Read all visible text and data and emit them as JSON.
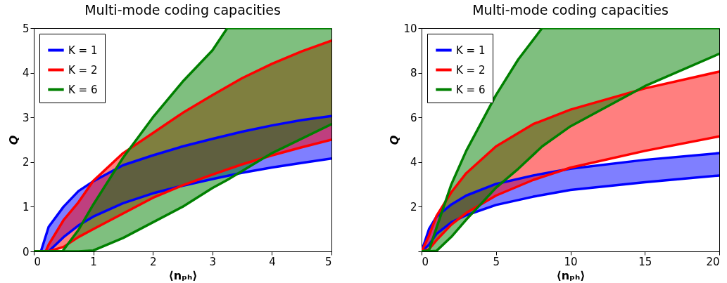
{
  "chart_data": [
    {
      "type": "line",
      "title": "Multi-mode coding capacities",
      "xlabel": "⟨nₚₕ⟩",
      "ylabel": "Q",
      "xlim": [
        0,
        5
      ],
      "ylim": [
        0,
        5
      ],
      "xticks": [
        0,
        1,
        2,
        3,
        4,
        5
      ],
      "yticks": [
        0,
        1,
        2,
        3,
        4,
        5
      ],
      "legend": "top left",
      "series": [
        {
          "name": "K = 1",
          "color": "#0000ff",
          "x": [
            0,
            0.12,
            0.25,
            0.5,
            0.75,
            1,
            1.5,
            2,
            2.5,
            3,
            3.5,
            4,
            4.5,
            5
          ],
          "values": [
            0,
            0,
            0.55,
            1.0,
            1.35,
            1.57,
            1.93,
            2.15,
            2.35,
            2.52,
            2.68,
            2.82,
            2.94,
            3.03
          ],
          "upper": [
            0,
            0,
            0.55,
            1.0,
            1.35,
            1.57,
            1.93,
            2.15,
            2.35,
            2.52,
            2.68,
            2.82,
            2.94,
            3.03
          ],
          "lower": [
            0,
            0,
            0,
            0.32,
            0.58,
            0.78,
            1.08,
            1.3,
            1.47,
            1.62,
            1.76,
            1.88,
            1.98,
            2.08
          ]
        },
        {
          "color": "#0000ff",
          "x": [
            0,
            0.12,
            0.25,
            0.5,
            0.75,
            1,
            1.5,
            2,
            2.5,
            3,
            3.5,
            4,
            4.5,
            5
          ],
          "values": [
            0,
            0,
            0,
            0.32,
            0.58,
            0.78,
            1.08,
            1.3,
            1.47,
            1.62,
            1.76,
            1.88,
            1.98,
            2.08
          ]
        },
        {
          "name": "K = 2",
          "color": "#ff0000",
          "x": [
            0,
            0.2,
            0.25,
            0.5,
            0.75,
            1,
            1.5,
            2,
            2.5,
            3,
            3.5,
            4,
            4.5,
            5
          ],
          "values": [
            0,
            0,
            0.15,
            0.7,
            1.1,
            1.58,
            2.2,
            2.65,
            3.1,
            3.5,
            3.88,
            4.2,
            4.48,
            4.72
          ],
          "upper": [
            0,
            0,
            0.15,
            0.7,
            1.1,
            1.58,
            2.2,
            2.65,
            3.1,
            3.5,
            3.88,
            4.2,
            4.48,
            4.72
          ],
          "lower": [
            0,
            0,
            0,
            0.1,
            0.32,
            0.5,
            0.85,
            1.2,
            1.48,
            1.72,
            1.95,
            2.15,
            2.33,
            2.5
          ]
        },
        {
          "color": "#ff0000",
          "x": [
            0,
            0.2,
            0.25,
            0.5,
            0.75,
            1,
            1.5,
            2,
            2.5,
            3,
            3.5,
            4,
            4.5,
            5
          ],
          "values": [
            0,
            0,
            0,
            0.1,
            0.32,
            0.5,
            0.85,
            1.2,
            1.48,
            1.72,
            1.95,
            2.15,
            2.33,
            2.5
          ]
        },
        {
          "name": "K = 6",
          "color": "#008000",
          "x": [
            0,
            0.48,
            0.75,
            1,
            1.5,
            2,
            2.5,
            3,
            3.25,
            4,
            5
          ],
          "values": [
            0,
            0,
            0.48,
            1.05,
            2.1,
            3.0,
            3.8,
            4.5,
            5,
            5,
            5
          ],
          "upper": [
            0,
            0,
            0.48,
            1.05,
            2.1,
            3.0,
            3.8,
            4.5,
            5,
            5,
            5
          ],
          "lower": [
            0,
            0,
            0,
            0.02,
            0.3,
            0.65,
            1.0,
            1.42,
            1.6,
            2.2,
            2.85
          ]
        },
        {
          "color": "#008000",
          "x": [
            0,
            0.48,
            0.75,
            1,
            1.5,
            2,
            2.5,
            3,
            3.25,
            4,
            5
          ],
          "values": [
            0,
            0,
            0,
            0.02,
            0.3,
            0.65,
            1.0,
            1.42,
            1.6,
            2.2,
            2.85
          ]
        }
      ]
    },
    {
      "type": "line",
      "title": "Multi-mode coding capacities",
      "xlabel": "⟨nₚₕ⟩",
      "ylabel": "Q",
      "xlim": [
        0,
        20
      ],
      "ylim": [
        0,
        10
      ],
      "xticks": [
        0,
        5,
        10,
        15,
        20
      ],
      "yticks": [
        {
          "value": 0,
          "label": null
        },
        2,
        4,
        6,
        8,
        10
      ],
      "legend": "top left",
      "series": [
        {
          "name": "K = 1",
          "color": "#0000ff",
          "x": [
            0,
            0.5,
            1,
            2,
            3,
            5,
            7.5,
            10,
            15,
            20
          ],
          "values": [
            0,
            1.0,
            1.55,
            2.1,
            2.5,
            3.02,
            3.4,
            3.7,
            4.1,
            4.4
          ],
          "upper": [
            0,
            1.0,
            1.55,
            2.1,
            2.5,
            3.02,
            3.4,
            3.7,
            4.1,
            4.4
          ],
          "lower": [
            0,
            0.3,
            0.78,
            1.3,
            1.62,
            2.08,
            2.45,
            2.75,
            3.1,
            3.4
          ]
        },
        {
          "color": "#0000ff",
          "x": [
            0,
            0.5,
            1,
            2,
            3,
            5,
            7.5,
            10,
            15,
            20
          ],
          "values": [
            0,
            0.3,
            0.78,
            1.3,
            1.62,
            2.08,
            2.45,
            2.75,
            3.1,
            3.4
          ]
        },
        {
          "name": "K = 2",
          "color": "#ff0000",
          "x": [
            0,
            0.5,
            1,
            2,
            3,
            5,
            7.5,
            10,
            15,
            20
          ],
          "values": [
            0,
            0.7,
            1.58,
            2.65,
            3.5,
            4.7,
            5.7,
            6.35,
            7.3,
            8.05
          ],
          "upper": [
            0,
            0.7,
            1.58,
            2.65,
            3.5,
            4.7,
            5.7,
            6.35,
            7.3,
            8.05
          ],
          "lower": [
            0,
            0.1,
            0.5,
            1.2,
            1.72,
            2.5,
            3.2,
            3.75,
            4.5,
            5.15
          ]
        },
        {
          "color": "#ff0000",
          "x": [
            0,
            0.5,
            1,
            2,
            3,
            5,
            7.5,
            10,
            15,
            20
          ],
          "values": [
            0,
            0.1,
            0.5,
            1.2,
            1.72,
            2.5,
            3.2,
            3.75,
            4.5,
            5.15
          ]
        },
        {
          "name": "K = 6",
          "color": "#008000",
          "x": [
            0,
            0.5,
            1,
            2,
            3,
            5,
            6.5,
            8.1,
            10,
            15,
            20
          ],
          "values": [
            0,
            0.05,
            1.05,
            3.0,
            4.5,
            7.0,
            8.6,
            10,
            10,
            10,
            10
          ],
          "upper": [
            0,
            0.05,
            1.05,
            3.0,
            4.5,
            7.0,
            8.6,
            10,
            10,
            10,
            10
          ],
          "lower": [
            0,
            0,
            0.02,
            0.65,
            1.42,
            2.85,
            3.7,
            4.7,
            5.6,
            7.4,
            8.85
          ]
        },
        {
          "color": "#008000",
          "x": [
            0,
            0.5,
            1,
            2,
            3,
            5,
            6.5,
            8.1,
            10,
            15,
            20
          ],
          "values": [
            0,
            0,
            0.02,
            0.65,
            1.42,
            2.85,
            3.7,
            4.7,
            5.6,
            7.4,
            8.85
          ]
        }
      ]
    }
  ]
}
